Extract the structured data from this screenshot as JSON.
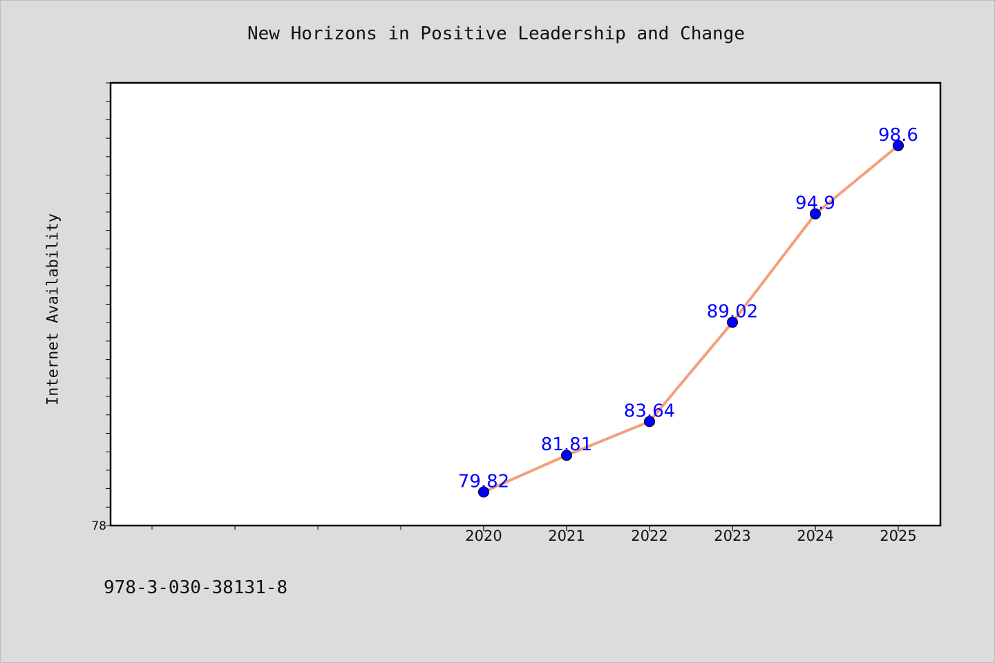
{
  "chart_data": {
    "type": "line",
    "title": "New Horizons in Positive Leadership and Change",
    "xlabel": "",
    "ylabel": "Internet Availability",
    "categories": [
      "2020",
      "2021",
      "2022",
      "2023",
      "2024",
      "2025"
    ],
    "series": [
      {
        "values": [
          79.82,
          81.81,
          83.64,
          89.02,
          94.9,
          98.6
        ],
        "data_labels": [
          "79.82",
          "81.81",
          "83.64",
          "89.02",
          "94.9",
          "98.6"
        ],
        "line_color": "#f4a07a",
        "marker_color": "#0000ff"
      }
    ],
    "ylim": [
      78,
      102
    ],
    "y_tick_labels": [
      "78"
    ],
    "grid": false,
    "legend": "none",
    "plot_background": "#ffffff",
    "page_background": "#dcdcdc"
  },
  "footer": {
    "isbn": "978-3-030-38131-8"
  }
}
